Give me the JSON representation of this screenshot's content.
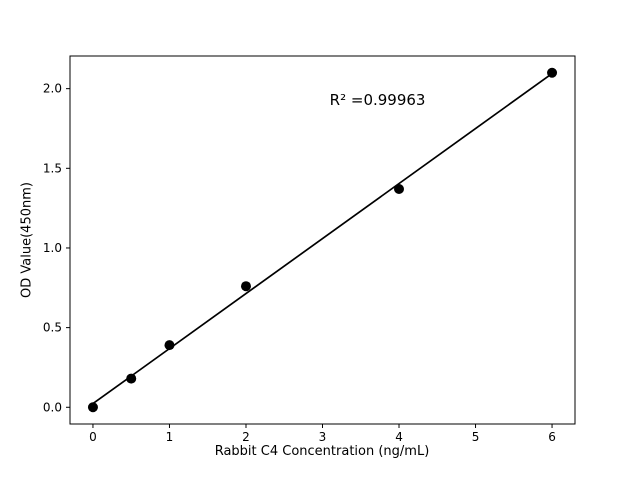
{
  "chart_data": {
    "type": "scatter",
    "title": "",
    "xlabel": "Rabbit C4 Concentration (ng/mL)",
    "ylabel": "OD Value(450nm)",
    "x": [
      0,
      0.5,
      1,
      2,
      4,
      6
    ],
    "y": [
      0.0,
      0.18,
      0.39,
      0.76,
      1.37,
      2.1
    ],
    "xlim": [
      -0.3,
      6.3
    ],
    "ylim": [
      -0.105,
      2.205
    ],
    "xticks": [
      0,
      1,
      2,
      3,
      4,
      5,
      6
    ],
    "xtick_labels": [
      "0",
      "1",
      "2",
      "3",
      "4",
      "5",
      "6"
    ],
    "yticks": [
      0.0,
      0.5,
      1.0,
      1.5,
      2.0
    ],
    "ytick_labels": [
      "0.0",
      "0.5",
      "1.0",
      "1.5",
      "2.0"
    ],
    "annotation": {
      "text": "R² =0.99963",
      "x": 3.72,
      "y": 1.93
    },
    "grid": false,
    "legend": null,
    "fit_line": true,
    "marker_color": "#000000",
    "line_color": "#000000",
    "background_color": "#ffffff"
  }
}
